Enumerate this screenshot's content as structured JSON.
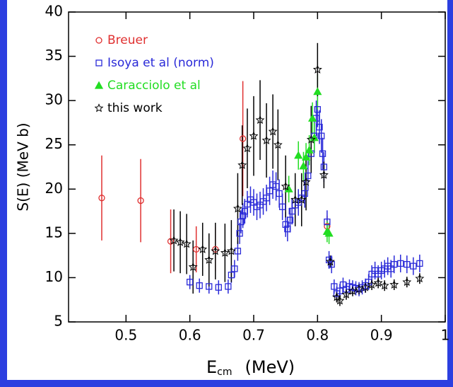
{
  "chart_data": {
    "type": "scatter",
    "ylabel": "S(E)  (MeV b)",
    "xlabel_symbol": "E",
    "xlabel_subscript": "cm",
    "xlabel_unit": "(MeV)",
    "xlim": [
      0.41,
      1.0
    ],
    "xticks": [
      0.5,
      0.6,
      0.7,
      0.8,
      0.9,
      {
        "value": 1.0,
        "label": "1"
      }
    ],
    "ylim": [
      5,
      40
    ],
    "yticks": [
      5,
      10,
      15,
      20,
      25,
      30,
      35,
      40
    ],
    "legend": "upper left",
    "series": [
      {
        "name": "Breuer",
        "color": "#e03030",
        "marker": "circle",
        "x": [
          0.462,
          0.523,
          0.57,
          0.61,
          0.64,
          0.683,
          0.815
        ],
        "values": [
          19.0,
          18.7,
          14.1,
          13.2,
          13.2,
          25.7,
          15.8
        ],
        "errors": [
          4.8,
          4.7,
          3.6,
          2.6,
          2.5,
          6.5,
          1.2
        ]
      },
      {
        "name": "Isoya et al (norm)",
        "color": "#2a2ad8",
        "marker": "square",
        "x": [
          0.6,
          0.615,
          0.63,
          0.645,
          0.66,
          0.665,
          0.67,
          0.675,
          0.678,
          0.68,
          0.683,
          0.686,
          0.69,
          0.695,
          0.7,
          0.705,
          0.71,
          0.715,
          0.72,
          0.725,
          0.73,
          0.735,
          0.74,
          0.745,
          0.75,
          0.753,
          0.757,
          0.76,
          0.765,
          0.77,
          0.775,
          0.78,
          0.785,
          0.79,
          0.795,
          0.798,
          0.8,
          0.803,
          0.806,
          0.808,
          0.81,
          0.815,
          0.818,
          0.822,
          0.826,
          0.83,
          0.835,
          0.84,
          0.845,
          0.85,
          0.855,
          0.86,
          0.865,
          0.87,
          0.875,
          0.88,
          0.885,
          0.89,
          0.895,
          0.9,
          0.905,
          0.91,
          0.915,
          0.92,
          0.93,
          0.94,
          0.95,
          0.96
        ],
        "values": [
          9.5,
          9.1,
          9.0,
          8.9,
          9.0,
          10.3,
          11.0,
          13.0,
          15.0,
          16.3,
          17.0,
          17.5,
          18.3,
          18.8,
          18.5,
          18.0,
          18.2,
          18.6,
          19.0,
          19.8,
          20.5,
          20.3,
          19.5,
          18.0,
          16.0,
          15.5,
          16.5,
          17.5,
          18.2,
          18.5,
          19.0,
          19.5,
          21.5,
          24.0,
          26.0,
          28.0,
          29.0,
          27.0,
          26.0,
          24.0,
          22.5,
          16.3,
          12.0,
          11.5,
          9.0,
          8.2,
          8.5,
          9.2,
          8.7,
          9.0,
          8.9,
          8.8,
          8.7,
          8.9,
          9.1,
          9.5,
          10.4,
          10.8,
          10.4,
          10.8,
          11.0,
          11.3,
          11.0,
          11.5,
          11.6,
          11.5,
          11.3,
          11.6
        ],
        "errors": [
          0.8,
          0.8,
          0.8,
          0.8,
          0.8,
          0.9,
          1.0,
          1.1,
          1.2,
          1.3,
          1.4,
          1.4,
          1.5,
          1.5,
          1.5,
          1.5,
          1.5,
          1.5,
          1.5,
          1.6,
          1.6,
          1.6,
          1.6,
          1.5,
          1.4,
          1.4,
          1.4,
          1.5,
          1.5,
          1.5,
          1.5,
          1.6,
          1.7,
          1.8,
          1.9,
          2.0,
          2.0,
          1.9,
          1.9,
          1.8,
          1.7,
          1.3,
          1.0,
          1.0,
          0.8,
          0.8,
          0.8,
          0.8,
          0.8,
          0.8,
          0.8,
          0.8,
          0.8,
          0.8,
          0.8,
          0.9,
          1.0,
          1.0,
          1.0,
          1.0,
          1.0,
          1.0,
          1.0,
          1.0,
          1.0,
          1.0,
          1.0,
          1.0
        ]
      },
      {
        "name": "Caracciolo et al",
        "color": "#22dd22",
        "marker": "triangle",
        "x": [
          0.755,
          0.77,
          0.778,
          0.782,
          0.787,
          0.792,
          0.795,
          0.8,
          0.815,
          0.818
        ],
        "values": [
          20.0,
          23.8,
          22.6,
          23.6,
          24.4,
          28.0,
          25.8,
          31.0,
          15.2,
          15.0
        ],
        "errors": [
          1.5,
          1.6,
          1.6,
          1.6,
          1.7,
          1.8,
          1.7,
          2.0,
          1.2,
          1.2
        ]
      },
      {
        "name": "this work",
        "color": "#000000",
        "marker": "star",
        "x": [
          0.575,
          0.585,
          0.595,
          0.605,
          0.62,
          0.63,
          0.64,
          0.655,
          0.665,
          0.675,
          0.682,
          0.69,
          0.7,
          0.71,
          0.72,
          0.73,
          0.738,
          0.75,
          0.765,
          0.775,
          0.782,
          0.79,
          0.8,
          0.81,
          0.82,
          0.83,
          0.835,
          0.845,
          0.855,
          0.865,
          0.875,
          0.885,
          0.895,
          0.905,
          0.92,
          0.94,
          0.96
        ],
        "values": [
          14.2,
          14.0,
          13.8,
          11.2,
          13.2,
          12.0,
          13.0,
          12.8,
          13.0,
          17.8,
          22.7,
          24.6,
          26.0,
          27.8,
          25.5,
          26.5,
          25.0,
          20.3,
          18.8,
          18.8,
          20.8,
          25.6,
          33.5,
          21.6,
          11.8,
          7.8,
          7.4,
          8.1,
          8.5,
          8.7,
          8.9,
          9.2,
          9.4,
          9.1,
          9.2,
          9.5,
          9.9
        ],
        "errors": [
          3.5,
          3.5,
          3.4,
          3.0,
          3.0,
          3.0,
          3.2,
          3.3,
          3.5,
          4.0,
          4.5,
          4.5,
          4.5,
          4.5,
          4.2,
          4.2,
          4.0,
          3.5,
          3.0,
          3.0,
          3.2,
          3.8,
          3.0,
          1.5,
          0.7,
          0.6,
          0.6,
          0.6,
          0.6,
          0.6,
          0.6,
          0.6,
          0.6,
          0.6,
          0.6,
          0.6,
          0.6
        ]
      }
    ]
  }
}
